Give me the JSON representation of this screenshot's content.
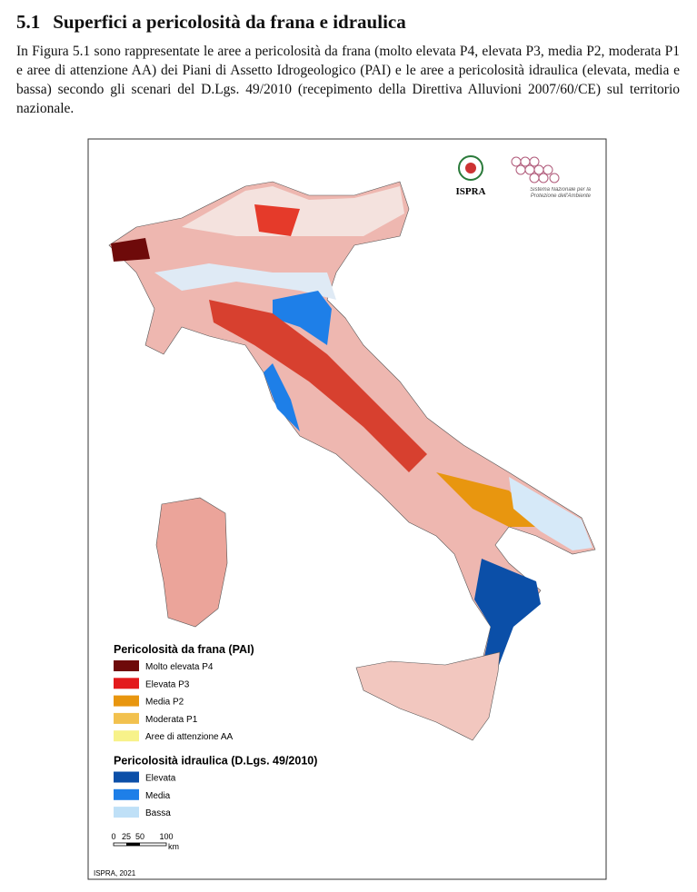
{
  "header": {
    "number": "5.1",
    "title": "Superfici a pericolosità da frana e idraulica"
  },
  "paragraph": "In Figura 5.1 sono rappresentate le aree a pericolosità da frana (molto elevata P4, elevata P3, media P2, moderata P1 e aree di attenzione AA) dei Piani di Assetto Idrogeologico (PAI) e le aree a pericolosità idraulica (elevata, media e bassa) secondo gli scenari del D.Lgs. 49/2010 (recepimento della Direttiva Alluvioni 2007/60/CE) sul territorio nazionale.",
  "figure": {
    "logos": {
      "ispra": "ISPRA",
      "snpa": "Sistema Nazionale per la Protezione dell'Ambiente"
    },
    "legend": [
      {
        "title": "Pericolosità da frana (PAI)",
        "items": [
          {
            "label": "Molto elevata P4",
            "color": "#6e0a0a"
          },
          {
            "label": "Elevata P3",
            "color": "#e31a1c"
          },
          {
            "label": "Media P2",
            "color": "#e8960f"
          },
          {
            "label": "Moderata P1",
            "color": "#f2c14e"
          },
          {
            "label": "Aree di attenzione AA",
            "color": "#f7f28a"
          }
        ]
      },
      {
        "title": "Pericolosità idraulica (D.Lgs. 49/2010)",
        "items": [
          {
            "label": "Elevata",
            "color": "#0b4fa8"
          },
          {
            "label": "Media",
            "color": "#1e7fe8"
          },
          {
            "label": "Bassa",
            "color": "#bfe0f7"
          }
        ]
      }
    ],
    "scale_bar": {
      "labels": [
        "0",
        "25",
        "50",
        "100"
      ],
      "unit": "km"
    },
    "credit": "ISPRA, 2021"
  }
}
